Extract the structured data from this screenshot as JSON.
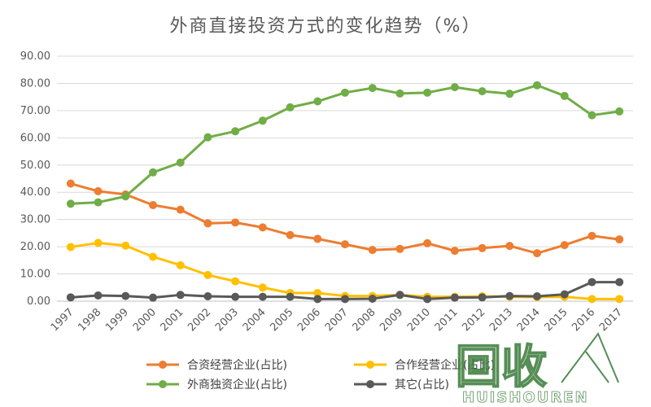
{
  "chart_data": {
    "type": "line",
    "title": "外商直接投资方式的变化趋势（%）",
    "xlabel": "",
    "ylabel": "",
    "ylim": [
      0,
      90
    ],
    "ytick_labels": [
      "0.00",
      "10.00",
      "20.00",
      "30.00",
      "40.00",
      "50.00",
      "60.00",
      "70.00",
      "80.00",
      "90.00"
    ],
    "categories": [
      "1997",
      "1998",
      "1999",
      "2000",
      "2001",
      "2002",
      "2003",
      "2004",
      "2005",
      "2006",
      "2007",
      "2008",
      "2009",
      "2010",
      "2011",
      "2012",
      "2013",
      "2014",
      "2015",
      "2016",
      "2017"
    ],
    "grid": "horizontal",
    "legend_position": "bottom",
    "series": [
      {
        "name": "合资经营企业(占比)",
        "color": "#ED7D31",
        "values": [
          43.2,
          40.4,
          39.2,
          35.3,
          33.6,
          28.6,
          28.9,
          27.1,
          24.3,
          22.9,
          20.9,
          18.8,
          19.2,
          21.3,
          18.5,
          19.5,
          20.3,
          17.6,
          20.6,
          24.0,
          22.7
        ]
      },
      {
        "name": "合作经营企业(占比)",
        "color": "#FFC000",
        "values": [
          19.9,
          21.4,
          20.4,
          16.3,
          13.2,
          9.6,
          7.3,
          5.0,
          3.0,
          3.0,
          1.9,
          1.9,
          2.3,
          1.6,
          1.6,
          1.8,
          1.6,
          1.5,
          1.6,
          0.8,
          0.8
        ]
      },
      {
        "name": "外商独资企业(占比)",
        "color": "#70AD47",
        "values": [
          35.8,
          36.3,
          38.5,
          47.3,
          50.9,
          60.2,
          62.4,
          66.3,
          71.2,
          73.4,
          76.6,
          78.3,
          76.3,
          76.6,
          78.6,
          77.1,
          76.2,
          79.3,
          75.4,
          68.3,
          69.7
        ]
      },
      {
        "name": "其它(占比)",
        "color": "#595959",
        "values": [
          1.4,
          2.1,
          1.9,
          1.3,
          2.3,
          1.8,
          1.6,
          1.6,
          1.6,
          0.8,
          0.8,
          0.9,
          2.3,
          0.8,
          1.3,
          1.4,
          1.9,
          1.8,
          2.5,
          7.0,
          7.0
        ]
      }
    ]
  },
  "watermark": {
    "logo_cn": "回收",
    "brand": "HUISHOUREN"
  }
}
